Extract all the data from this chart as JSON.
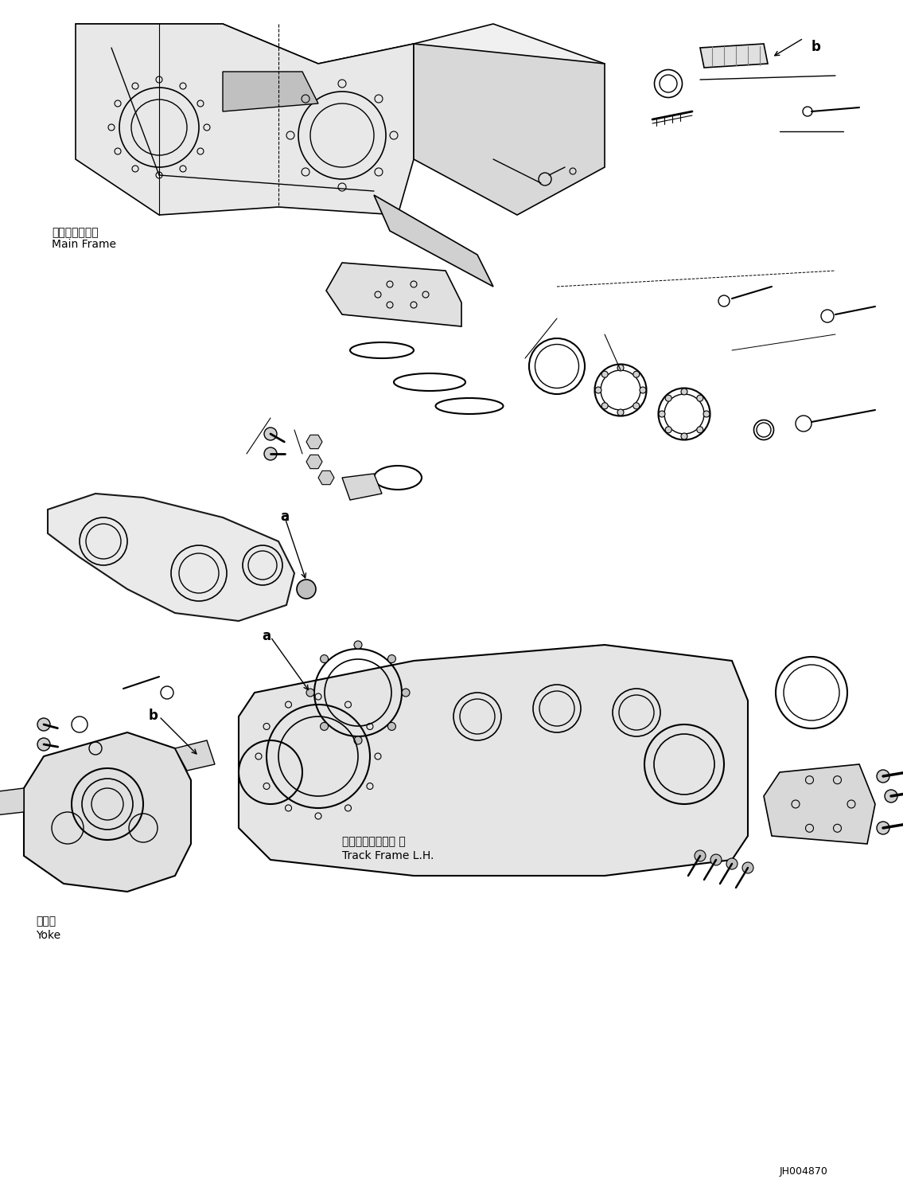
{
  "title": "",
  "background_color": "#ffffff",
  "border_color": "#000000",
  "diagram_code": "JH004870",
  "labels": {
    "main_frame_jp": "メインフレーム",
    "main_frame_en": "Main Frame",
    "track_frame_jp": "トラックフレーム 左",
    "track_frame_en": "Track Frame L.H.",
    "yoke_jp": "ヨーク",
    "yoke_en": "Yoke",
    "label_a": "a",
    "label_b": "b"
  },
  "figsize": [
    11.35,
    14.91
  ],
  "dpi": 100
}
